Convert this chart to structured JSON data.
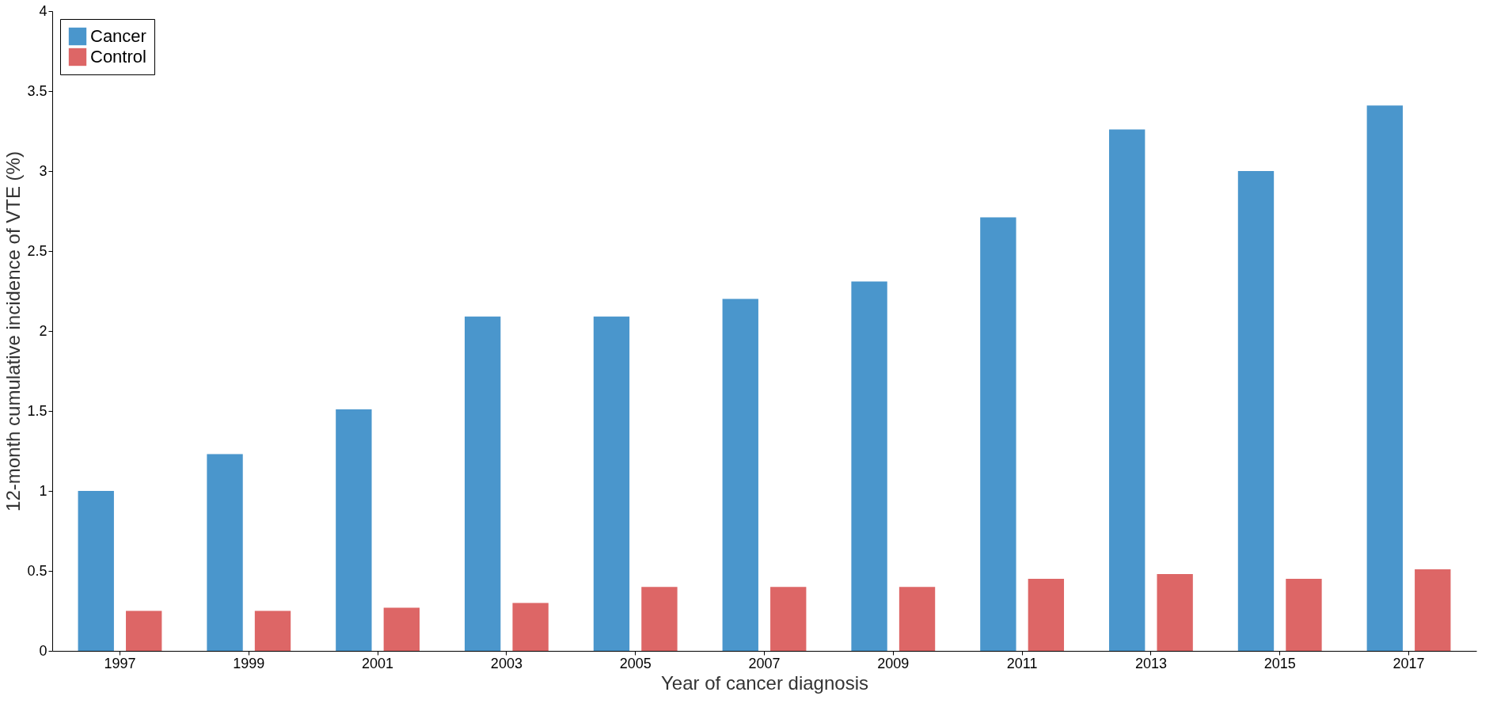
{
  "chart_data": {
    "type": "bar",
    "xlabel": "Year of cancer diagnosis",
    "ylabel": "12-month cumulative incidence of VTE (%)",
    "categories": [
      "1997",
      "1999",
      "2001",
      "2003",
      "2005",
      "2007",
      "2009",
      "2011",
      "2013",
      "2015",
      "2017"
    ],
    "series": [
      {
        "name": "Cancer",
        "color": "#4a96cc",
        "values": [
          1.0,
          1.23,
          1.51,
          2.09,
          2.09,
          2.2,
          2.31,
          2.71,
          3.26,
          3.0,
          3.41
        ]
      },
      {
        "name": "Control",
        "color": "#dd6666",
        "values": [
          0.25,
          0.25,
          0.27,
          0.3,
          0.4,
          0.4,
          0.4,
          0.45,
          0.48,
          0.45,
          0.51
        ]
      }
    ],
    "ylim": [
      0,
      4
    ],
    "yticks": [
      0,
      0.5,
      1,
      1.5,
      2,
      2.5,
      3,
      3.5,
      4
    ],
    "grid": false,
    "legend": "top left"
  }
}
